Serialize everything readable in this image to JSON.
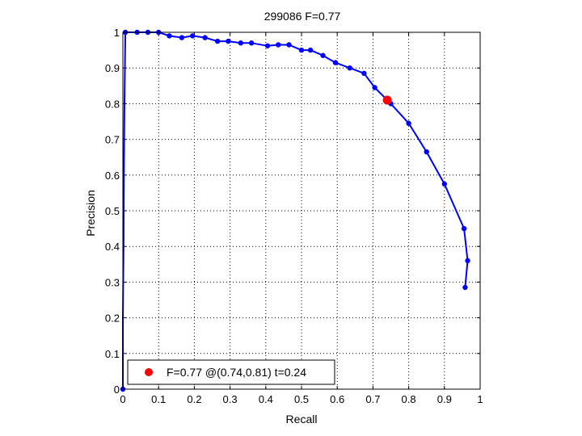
{
  "chart_data": {
    "type": "line",
    "title": "299086 F=0.77",
    "xlabel": "Recall",
    "ylabel": "Precision",
    "xlim": [
      0,
      1
    ],
    "ylim": [
      0,
      1
    ],
    "xticks": [
      "0",
      "0.1",
      "0.2",
      "0.3",
      "0.4",
      "0.5",
      "0.6",
      "0.7",
      "0.8",
      "0.9",
      "1"
    ],
    "yticks": [
      "0",
      "0.1",
      "0.2",
      "0.3",
      "0.4",
      "0.5",
      "0.6",
      "0.7",
      "0.8",
      "0.9",
      "1"
    ],
    "grid": true,
    "grid_style": "dotted",
    "series": [
      {
        "color": "#0000ff",
        "marker": "dot",
        "x": [
          0.0,
          0.0,
          0.002,
          0.003,
          0.004,
          0.005,
          0.007,
          0.04,
          0.07,
          0.1,
          0.13,
          0.165,
          0.195,
          0.23,
          0.265,
          0.295,
          0.33,
          0.36,
          0.405,
          0.435,
          0.465,
          0.5,
          0.525,
          0.56,
          0.595,
          0.635,
          0.675,
          0.705,
          0.75,
          0.8,
          0.85,
          0.9,
          0.955,
          0.965,
          0.958
        ],
        "y": [
          0.0,
          0.2,
          0.4,
          0.6,
          0.75,
          0.84,
          1.0,
          1.0,
          1.0,
          1.0,
          0.99,
          0.985,
          0.99,
          0.985,
          0.975,
          0.975,
          0.97,
          0.97,
          0.962,
          0.965,
          0.965,
          0.95,
          0.95,
          0.935,
          0.915,
          0.9,
          0.885,
          0.845,
          0.8,
          0.745,
          0.665,
          0.575,
          0.45,
          0.36,
          0.285
        ],
        "markers_at": [
          0,
          6,
          7,
          8,
          9,
          10,
          11,
          12,
          13,
          14,
          15,
          16,
          17,
          18,
          19,
          20,
          21,
          22,
          23,
          24,
          25,
          26,
          27,
          28,
          29,
          30,
          31,
          32,
          33,
          34
        ]
      }
    ],
    "highlight": {
      "x": 0.74,
      "y": 0.81,
      "color": "#ff0000"
    },
    "legend": {
      "position": "bottom-left",
      "entries": [
        {
          "label": "F=0.77 @(0.74,0.81) t=0.24",
          "color": "#ff0000",
          "marker": "dot"
        }
      ]
    }
  }
}
